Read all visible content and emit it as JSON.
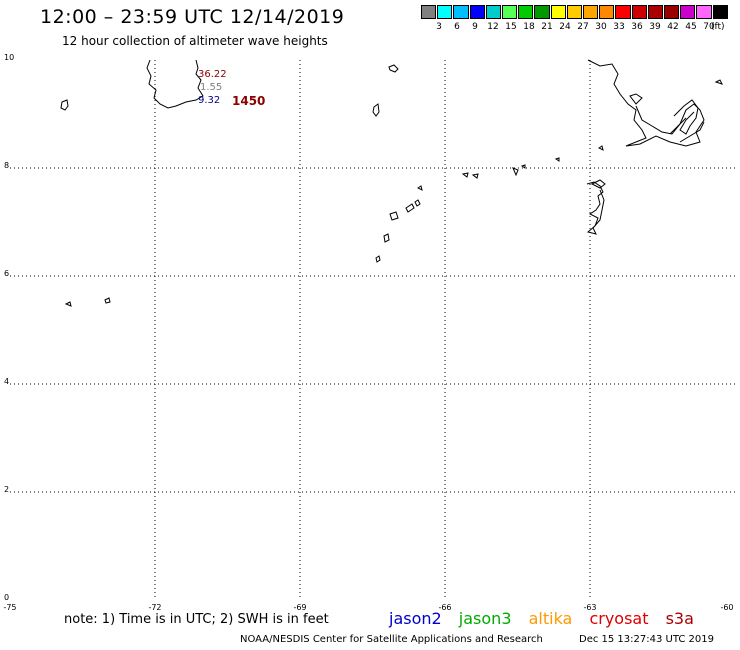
{
  "header": {
    "title": "12:00 – 23:59 UTC 12/14/2019",
    "subtitle": "12 hour collection of altimeter wave heights"
  },
  "color_scale": {
    "colors": [
      "#808080",
      "#00ffff",
      "#00bfff",
      "#0000ff",
      "#00cccc",
      "#55ff55",
      "#00cc00",
      "#009900",
      "#ffff00",
      "#ffcc00",
      "#ffa500",
      "#ff8800",
      "#ff0000",
      "#cc0000",
      "#aa0000",
      "#990000",
      "#cc00cc",
      "#ff66ff",
      "#000000"
    ],
    "labels": [
      "3",
      "6",
      "9",
      "12",
      "15",
      "18",
      "21",
      "24",
      "27",
      "30",
      "33",
      "36",
      "39",
      "42",
      "45",
      "70"
    ],
    "unit": "(ft)"
  },
  "axes": {
    "y_ticks": [
      "10",
      "8",
      "6",
      "4",
      "2",
      "0"
    ],
    "x_ticks": [
      "-75",
      "-72",
      "-69",
      "-66",
      "-63",
      "-60"
    ]
  },
  "observations": {
    "values": [
      {
        "text": "36.22",
        "color": "#8b0000"
      },
      {
        "text": "1.55",
        "color": "#808080"
      },
      {
        "text": "9.32",
        "color": "#00008b"
      }
    ],
    "pass_time": {
      "text": "1450",
      "color": "#8b0000"
    }
  },
  "legend": {
    "note": "note: 1) Time is in UTC; 2) SWH is in feet",
    "satellites": [
      {
        "name": "jason2",
        "color": "#0000cc"
      },
      {
        "name": "jason3",
        "color": "#00aa00"
      },
      {
        "name": "altika",
        "color": "#ff9900"
      },
      {
        "name": "cryosat",
        "color": "#dd0000"
      },
      {
        "name": "s3a",
        "color": "#aa0000"
      }
    ]
  },
  "footer": {
    "credit": "NOAA/NESDIS Center for Satellite Applications and Research",
    "timestamp": "Dec 15 13:27:43 UTC 2019"
  }
}
